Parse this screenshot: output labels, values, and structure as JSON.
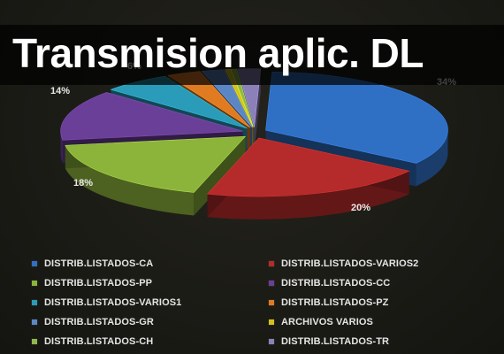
{
  "page": {
    "title": "Transmision aplic. DL"
  },
  "chart_data": {
    "type": "pie",
    "style": "3d-exploded",
    "title": "Transmision aplic. DL",
    "legend_position": "bottom",
    "slices": [
      {
        "name": "DISTRIB.LISTADOS-CA",
        "value": 34,
        "label": "34%",
        "color": "#2f6fc4"
      },
      {
        "name": "DISTRIB.LISTADOS-VARIOS2",
        "value": 20,
        "label": "20%",
        "color": "#b52a2a"
      },
      {
        "name": "DISTRIB.LISTADOS-PP",
        "value": 18,
        "label": "18%",
        "color": "#8cb33a"
      },
      {
        "name": "DISTRIB.LISTADOS-CC",
        "value": 14,
        "label": "14%",
        "color": "#6a3f97"
      },
      {
        "name": "DISTRIB.LISTADOS-VARIOS1",
        "value": 6,
        "label": "6%",
        "color": "#2a9bb8"
      },
      {
        "name": "DISTRIB.LISTADOS-PZ",
        "value": 3,
        "label": "",
        "color": "#e07b22"
      },
      {
        "name": "DISTRIB.LISTADOS-GR",
        "value": 2,
        "label": "",
        "color": "#5b86c4"
      },
      {
        "name": "ARCHIVOS VARIOS",
        "value": 0.5,
        "label": "",
        "color": "#d4c21c"
      },
      {
        "name": "DISTRIB.LISTADOS-CH",
        "value": 0.5,
        "label": "",
        "color": "#8fb84a"
      },
      {
        "name": "DISTRIB.LISTADOS-TR",
        "value": 2,
        "label": "",
        "color": "#8c80b8"
      }
    ]
  }
}
